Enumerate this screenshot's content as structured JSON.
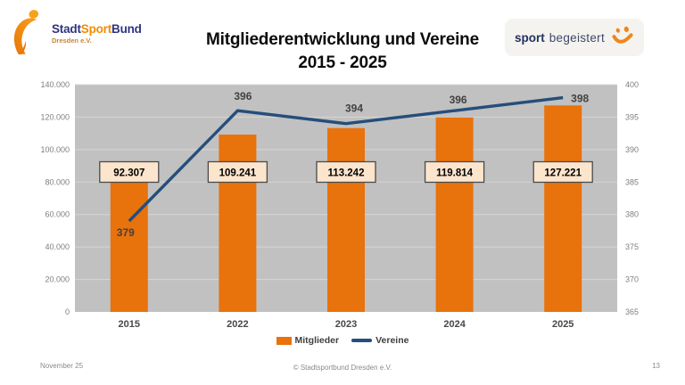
{
  "header": {
    "logo_left": {
      "part1": "Stadt",
      "part2": "Sport",
      "part3": "Bund",
      "subtitle": "Dresden e.V."
    },
    "title_line1": "Mitgliederentwicklung und Vereine",
    "title_line2": "2015 - 2025",
    "logo_right": {
      "word1": "sport",
      "word2": "begeistert"
    }
  },
  "chart_data": {
    "type": "bar+line combo",
    "categories": [
      "2015",
      "2022",
      "2023",
      "2024",
      "2025"
    ],
    "series": [
      {
        "name": "Mitglieder",
        "type": "bar",
        "axis": "left",
        "color": "#E8720C",
        "values": [
          92307,
          109241,
          113242,
          119814,
          127221
        ],
        "labels": [
          "92.307",
          "109.241",
          "113.242",
          "119.814",
          "127.221"
        ]
      },
      {
        "name": "Vereine",
        "type": "line",
        "axis": "right",
        "color": "#254E7B",
        "values": [
          379,
          396,
          394,
          396,
          398
        ]
      }
    ],
    "left_axis": {
      "min": 0,
      "max": 140000,
      "step": 20000,
      "tick_labels": [
        "140.000",
        "120.000",
        "100.000",
        "80.000",
        "60.000",
        "40.000",
        "20.000",
        "0"
      ]
    },
    "right_axis": {
      "min": 365,
      "max": 400,
      "step": 5,
      "tick_labels": [
        "400",
        "395",
        "390",
        "385",
        "380",
        "375",
        "370",
        "365"
      ]
    },
    "plot_bg": "#C1C1C1",
    "gridline_color": "#D6D6D6",
    "value_box_bg": "#FCE5CD",
    "value_box_border": "#4a4a4a",
    "legend_position": "bottom",
    "grid": "horizontal"
  },
  "footer": {
    "date": "November 25",
    "copyright": "© Stadtsportbund Dresden e.V.",
    "page": "13"
  }
}
